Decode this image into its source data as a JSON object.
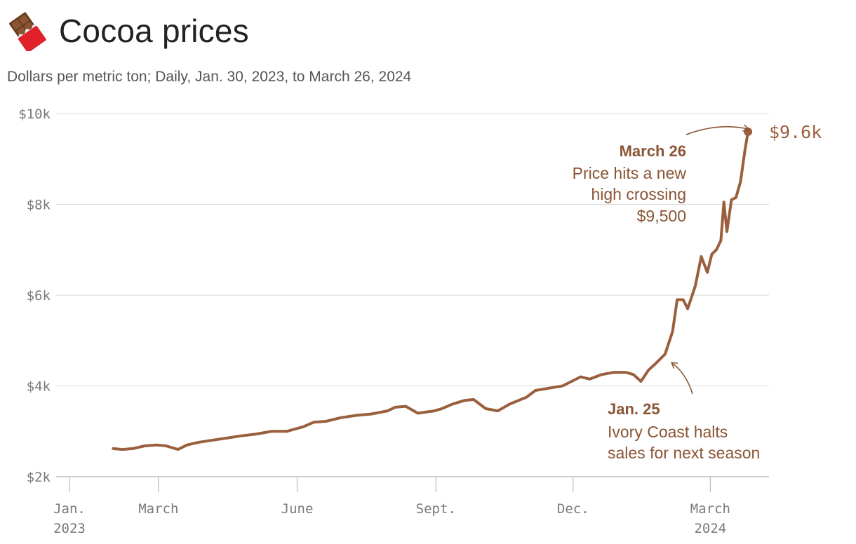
{
  "header": {
    "title": "Cocoa prices",
    "subtitle": "Dollars per metric ton; Daily, Jan. 30, 2023, to March 26, 2024",
    "icon": "chocolate-bar-icon"
  },
  "colors": {
    "line": "#9a5f3d",
    "annotation": "#8a5535",
    "grid": "#d9d9d9",
    "axis_text": "#7a7a7a"
  },
  "annotations": {
    "march26": {
      "date": "March 26",
      "lines": [
        "Price hits a new",
        "high crossing",
        "$9,500"
      ]
    },
    "jan25": {
      "date": "Jan. 25",
      "lines": [
        "Ivory Coast halts",
        "sales for next season"
      ]
    },
    "end_label": "$9.6k"
  },
  "chart_data": {
    "type": "line",
    "title": "Cocoa prices",
    "subtitle": "Dollars per metric ton; Daily, Jan. 30, 2023, to March 26, 2024",
    "ylim": [
      2000,
      10000
    ],
    "xlim": [
      "2023-01-01",
      "2024-04-01"
    ],
    "y_ticks": [
      2000,
      4000,
      6000,
      8000,
      10000
    ],
    "y_tick_labels": [
      "$2k",
      "$4k",
      "$6k",
      "$8k",
      "$10k"
    ],
    "x_ticks": [
      {
        "date": "2023-01-01",
        "label": "Jan.",
        "sublabel": "2023"
      },
      {
        "date": "2023-03-01",
        "label": "March",
        "sublabel": ""
      },
      {
        "date": "2023-06-01",
        "label": "June",
        "sublabel": ""
      },
      {
        "date": "2023-09-01",
        "label": "Sept.",
        "sublabel": ""
      },
      {
        "date": "2023-12-01",
        "label": "Dec.",
        "sublabel": ""
      },
      {
        "date": "2024-03-01",
        "label": "March",
        "sublabel": "2024"
      }
    ],
    "grid": true,
    "series": [
      {
        "x": [
          "2023-01-30",
          "2023-02-05",
          "2023-02-12",
          "2023-02-20",
          "2023-02-28",
          "2023-03-06",
          "2023-03-14",
          "2023-03-20",
          "2023-03-28",
          "2023-04-05",
          "2023-04-15",
          "2023-04-25",
          "2023-05-05",
          "2023-05-15",
          "2023-05-25",
          "2023-06-05",
          "2023-06-12",
          "2023-06-20",
          "2023-06-30",
          "2023-07-10",
          "2023-07-20",
          "2023-07-31",
          "2023-08-05",
          "2023-08-12",
          "2023-08-20",
          "2023-08-31",
          "2023-09-05",
          "2023-09-12",
          "2023-09-20",
          "2023-09-26",
          "2023-10-04",
          "2023-10-12",
          "2023-10-20",
          "2023-10-31",
          "2023-11-06",
          "2023-11-15",
          "2023-11-24",
          "2023-11-30",
          "2023-12-06",
          "2023-12-12",
          "2023-12-20",
          "2023-12-28",
          "2024-01-05",
          "2024-01-10",
          "2024-01-15",
          "2024-01-20",
          "2024-01-25",
          "2024-01-31",
          "2024-02-05",
          "2024-02-08",
          "2024-02-12",
          "2024-02-15",
          "2024-02-20",
          "2024-02-24",
          "2024-02-28",
          "2024-03-02",
          "2024-03-05",
          "2024-03-08",
          "2024-03-10",
          "2024-03-12",
          "2024-03-15",
          "2024-03-18",
          "2024-03-21",
          "2024-03-24",
          "2024-03-26"
        ],
        "y": [
          2620,
          2600,
          2620,
          2680,
          2700,
          2680,
          2600,
          2700,
          2760,
          2800,
          2850,
          2900,
          2940,
          3000,
          3000,
          3100,
          3200,
          3220,
          3300,
          3350,
          3380,
          3450,
          3530,
          3550,
          3400,
          3450,
          3500,
          3600,
          3680,
          3700,
          3500,
          3450,
          3600,
          3750,
          3900,
          3950,
          4000,
          4100,
          4200,
          4150,
          4250,
          4300,
          4300,
          4250,
          4100,
          4350,
          4500,
          4700,
          5200,
          5900,
          5900,
          5700,
          6200,
          6850,
          6500,
          6900,
          7000,
          7200,
          8050,
          7400,
          8100,
          8150,
          8500,
          9200,
          9600
        ]
      }
    ],
    "annotations": [
      {
        "date": "2024-03-26",
        "value": 9600,
        "label": "March 26",
        "text": "Price hits a new high crossing $9,500"
      },
      {
        "date": "2024-01-25",
        "value": 4500,
        "label": "Jan. 25",
        "text": "Ivory Coast halts sales for next season"
      }
    ]
  }
}
